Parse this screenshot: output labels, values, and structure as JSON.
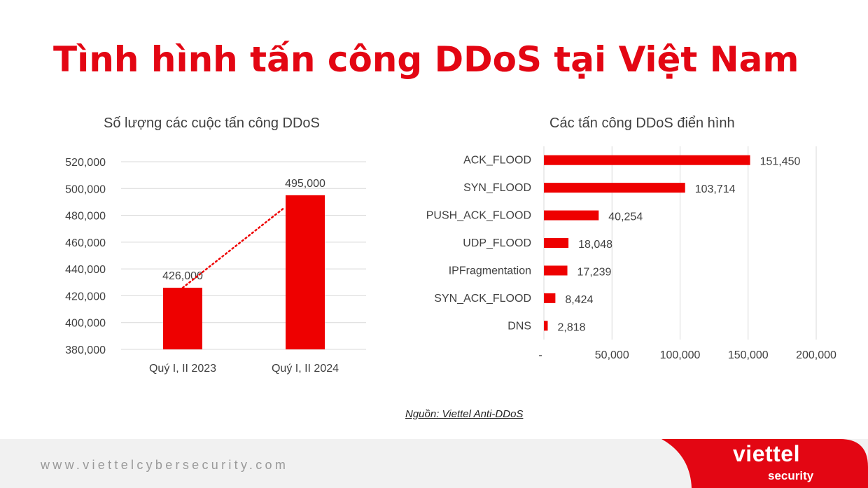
{
  "slide": {
    "title": "Tình hình tấn công DDoS tại Việt Nam",
    "source": "Nguồn: Viettel Anti-DDoS"
  },
  "colors": {
    "accent": "#e30613",
    "bar": "#ee0000",
    "grid": "#d9d9d9",
    "text": "#404040",
    "footer_bg": "#f1f1f1"
  },
  "chart_data": [
    {
      "type": "bar",
      "title": "Số lượng các cuộc tấn công DDoS",
      "categories": [
        "Quý I, II 2023",
        "Quý I, II 2024"
      ],
      "values": [
        426000,
        495000
      ],
      "value_labels": [
        "426,000",
        "495,000"
      ],
      "ylim": [
        380000,
        520000
      ],
      "yticks": [
        380000,
        400000,
        420000,
        440000,
        460000,
        480000,
        500000,
        520000
      ],
      "ytick_labels": [
        "380,000",
        "400,000",
        "420,000",
        "440,000",
        "460,000",
        "480,000",
        "500,000",
        "520,000"
      ],
      "grid": true,
      "trendline": "dotted linear",
      "xlabel": "",
      "ylabel": ""
    },
    {
      "type": "bar",
      "orientation": "horizontal",
      "title": "Các tấn công DDoS điển hình",
      "categories": [
        "ACK_FLOOD",
        "SYN_FLOOD",
        "PUSH_ACK_FLOOD",
        "UDP_FLOOD",
        "IPFragmentation",
        "SYN_ACK_FLOOD",
        "DNS"
      ],
      "values": [
        151450,
        103714,
        40254,
        18048,
        17239,
        8424,
        2818
      ],
      "value_labels": [
        "151,450",
        "103,714",
        "40,254",
        "18,048",
        "17,239",
        "8,424",
        "2,818"
      ],
      "xlim": [
        0,
        200000
      ],
      "xticks": [
        0,
        50000,
        100000,
        150000,
        200000
      ],
      "xtick_labels": [
        "-",
        "50,000",
        "100,000",
        "150,000",
        "200,000"
      ],
      "grid": true,
      "xlabel": "",
      "ylabel": ""
    }
  ],
  "footer": {
    "website": "www.viettelcybersecurity.com",
    "logo_brand": "viettel",
    "logo_sub": "security"
  }
}
